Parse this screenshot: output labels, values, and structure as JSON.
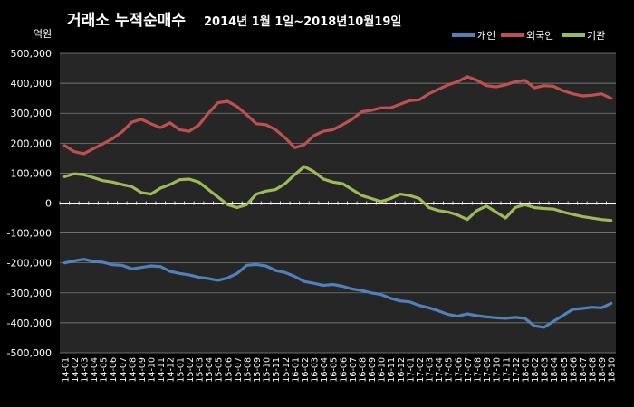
{
  "chart_data": {
    "type": "line",
    "title_main": "거래소 누적순매수",
    "title_range": "2014년 1월 1일~2018년10월19일",
    "unit": "억원",
    "ylim": [
      -500000,
      500000
    ],
    "ytick_labels": [
      "500,000",
      "400,000",
      "300,000",
      "200,000",
      "100,000",
      "0",
      "-100,000",
      "-200,000",
      "-300,000",
      "-400,000",
      "-500,000"
    ],
    "grid": true,
    "legend": "top-right",
    "categories": [
      "14-01",
      "14-02",
      "14-03",
      "14-04",
      "14-05",
      "14-06",
      "14-07",
      "14-08",
      "14-09",
      "14-10",
      "14-11",
      "14-12",
      "15-01",
      "15-02",
      "15-03",
      "15-04",
      "15-05",
      "15-06",
      "15-07",
      "15-08",
      "15-09",
      "15-10",
      "15-11",
      "15-12",
      "16-01",
      "16-02",
      "16-03",
      "16-04",
      "16-05",
      "16-06",
      "16-07",
      "16-08",
      "16-09",
      "16-10",
      "16-11",
      "16-12",
      "17-01",
      "17-02",
      "17-03",
      "17-04",
      "17-05",
      "17-06",
      "17-07",
      "17-08",
      "17-09",
      "17-10",
      "17-11",
      "17-12",
      "18-01",
      "18-02",
      "18-03",
      "18-04",
      "18-05",
      "18-06",
      "18-07",
      "18-08",
      "18-09",
      "18-10"
    ],
    "series": [
      {
        "name": "개인",
        "color": "#4F81BD",
        "values": [
          -200000,
          -193000,
          -188000,
          -195000,
          -198000,
          -206000,
          -208000,
          -220000,
          -215000,
          -210000,
          -212000,
          -228000,
          -235000,
          -240000,
          -248000,
          -252000,
          -258000,
          -250000,
          -235000,
          -208000,
          -205000,
          -210000,
          -225000,
          -232000,
          -245000,
          -262000,
          -268000,
          -275000,
          -272000,
          -278000,
          -287000,
          -292000,
          -300000,
          -305000,
          -318000,
          -327000,
          -330000,
          -342000,
          -350000,
          -360000,
          -372000,
          -378000,
          -370000,
          -376000,
          -380000,
          -383000,
          -385000,
          -382000,
          -385000,
          -410000,
          -415000,
          -395000,
          -375000,
          -355000,
          -352000,
          -348000,
          -350000,
          -335000
        ]
      },
      {
        "name": "외국인",
        "color": "#C0504D",
        "values": [
          192000,
          172000,
          165000,
          182000,
          198000,
          215000,
          238000,
          270000,
          280000,
          265000,
          252000,
          268000,
          245000,
          240000,
          260000,
          300000,
          335000,
          340000,
          322000,
          295000,
          265000,
          262000,
          245000,
          218000,
          185000,
          195000,
          225000,
          240000,
          245000,
          262000,
          280000,
          305000,
          310000,
          318000,
          318000,
          330000,
          342000,
          345000,
          365000,
          380000,
          395000,
          405000,
          422000,
          410000,
          392000,
          388000,
          395000,
          405000,
          410000,
          385000,
          392000,
          390000,
          375000,
          365000,
          358000,
          360000,
          365000,
          350000
        ]
      },
      {
        "name": "기관",
        "color": "#9BBB59",
        "values": [
          88000,
          98000,
          95000,
          85000,
          75000,
          70000,
          62000,
          55000,
          35000,
          30000,
          50000,
          62000,
          78000,
          80000,
          70000,
          45000,
          20000,
          -5000,
          -15000,
          -5000,
          30000,
          40000,
          45000,
          65000,
          95000,
          122000,
          105000,
          80000,
          70000,
          65000,
          45000,
          25000,
          15000,
          5000,
          15000,
          30000,
          25000,
          15000,
          -15000,
          -25000,
          -30000,
          -40000,
          -55000,
          -25000,
          -10000,
          -30000,
          -50000,
          -15000,
          -5000,
          -15000,
          -18000,
          -20000,
          -30000,
          -38000,
          -45000,
          -50000,
          -55000,
          -58000
        ]
      }
    ]
  }
}
